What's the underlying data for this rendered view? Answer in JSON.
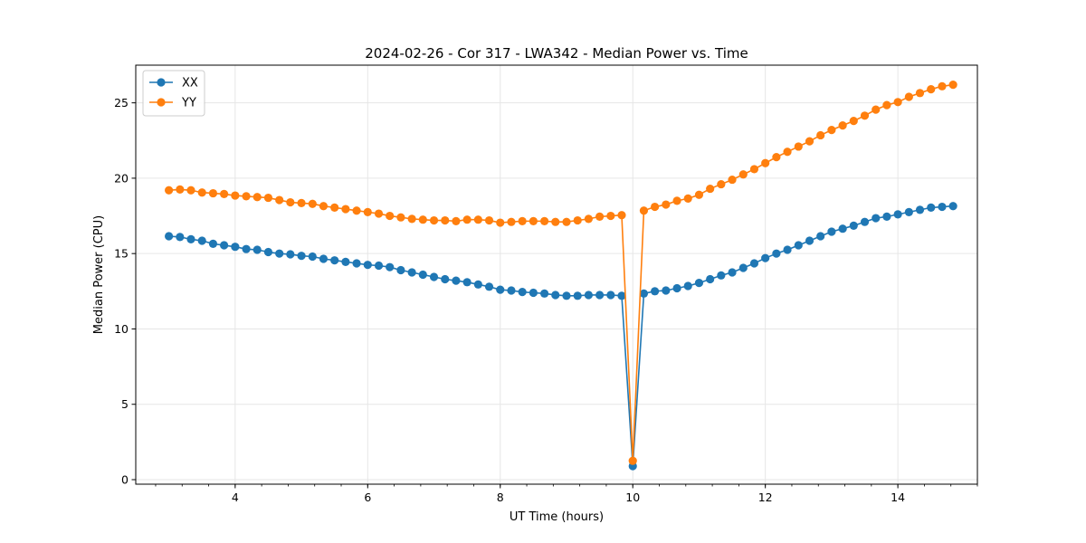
{
  "chart_data": {
    "type": "line",
    "title": "2024-02-26 - Cor 317 - LWA342 - Median Power vs. Time",
    "xlabel": "UT Time (hours)",
    "ylabel": "Median Power (CPU)",
    "xlim": [
      2.5,
      15.2
    ],
    "ylim": [
      -0.3,
      27.5
    ],
    "xticks": [
      4,
      6,
      8,
      10,
      12,
      14
    ],
    "xminor_step": 0.4,
    "yticks": [
      0,
      5,
      10,
      15,
      20,
      25
    ],
    "grid": true,
    "legend_position": "top-left",
    "x": [
      3.0,
      3.167,
      3.333,
      3.5,
      3.667,
      3.833,
      4.0,
      4.167,
      4.333,
      4.5,
      4.667,
      4.833,
      5.0,
      5.167,
      5.333,
      5.5,
      5.667,
      5.833,
      6.0,
      6.167,
      6.333,
      6.5,
      6.667,
      6.833,
      7.0,
      7.167,
      7.333,
      7.5,
      7.667,
      7.833,
      8.0,
      8.167,
      8.333,
      8.5,
      8.667,
      8.833,
      9.0,
      9.167,
      9.333,
      9.5,
      9.667,
      9.833,
      10.0,
      10.167,
      10.333,
      10.5,
      10.667,
      10.833,
      11.0,
      11.167,
      11.333,
      11.5,
      11.667,
      11.833,
      12.0,
      12.167,
      12.333,
      12.5,
      12.667,
      12.833,
      13.0,
      13.167,
      13.333,
      13.5,
      13.667,
      13.833,
      14.0,
      14.167,
      14.333,
      14.5,
      14.667,
      14.833
    ],
    "series": [
      {
        "name": "XX",
        "color": "#1f77b4",
        "values": [
          16.15,
          16.1,
          15.95,
          15.85,
          15.65,
          15.55,
          15.45,
          15.3,
          15.25,
          15.1,
          15.0,
          14.95,
          14.85,
          14.8,
          14.65,
          14.55,
          14.45,
          14.35,
          14.25,
          14.2,
          14.1,
          13.9,
          13.75,
          13.6,
          13.45,
          13.3,
          13.2,
          13.1,
          12.95,
          12.8,
          12.6,
          12.55,
          12.45,
          12.4,
          12.35,
          12.25,
          12.2,
          12.2,
          12.25,
          12.25,
          12.25,
          12.2,
          0.9,
          12.35,
          12.5,
          12.55,
          12.7,
          12.85,
          13.05,
          13.3,
          13.55,
          13.75,
          14.05,
          14.35,
          14.7,
          15.0,
          15.25,
          15.55,
          15.85,
          16.15,
          16.45,
          16.65,
          16.85,
          17.1,
          17.35,
          17.45,
          17.6,
          17.75,
          17.9,
          18.05,
          18.1,
          18.15
        ]
      },
      {
        "name": "YY",
        "color": "#ff7f0e",
        "values": [
          19.2,
          19.25,
          19.2,
          19.05,
          19.0,
          18.95,
          18.85,
          18.8,
          18.75,
          18.7,
          18.55,
          18.4,
          18.35,
          18.3,
          18.15,
          18.05,
          17.95,
          17.85,
          17.75,
          17.65,
          17.5,
          17.4,
          17.3,
          17.25,
          17.2,
          17.2,
          17.15,
          17.25,
          17.25,
          17.2,
          17.05,
          17.1,
          17.15,
          17.15,
          17.15,
          17.1,
          17.1,
          17.2,
          17.3,
          17.45,
          17.5,
          17.55,
          1.25,
          17.85,
          18.1,
          18.25,
          18.5,
          18.65,
          18.9,
          19.3,
          19.6,
          19.9,
          20.25,
          20.6,
          21.0,
          21.4,
          21.75,
          22.1,
          22.45,
          22.85,
          23.2,
          23.5,
          23.8,
          24.15,
          24.55,
          24.85,
          25.05,
          25.4,
          25.65,
          25.9,
          26.1,
          26.2
        ]
      }
    ]
  }
}
